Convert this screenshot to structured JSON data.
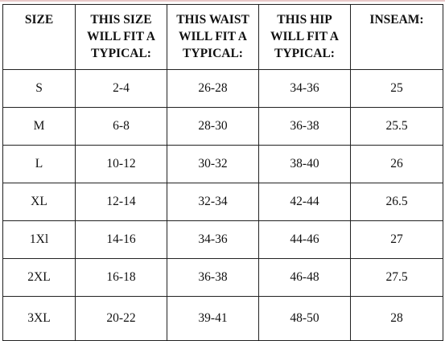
{
  "table": {
    "header": [
      "SIZE",
      "THIS SIZE WILL FIT A TYPICAL:",
      "THIS WAIST WILL FIT A TYPICAL:",
      "THIS HIP WILL FIT A TYPICAL:",
      "INSEAM:"
    ],
    "rows": [
      [
        "S",
        "2-4",
        "26-28",
        "34-36",
        "25"
      ],
      [
        "M",
        "6-8",
        "28-30",
        "36-38",
        "25.5"
      ],
      [
        "L",
        "10-12",
        "30-32",
        "38-40",
        "26"
      ],
      [
        "XL",
        "12-14",
        "32-34",
        "42-44",
        "26.5"
      ],
      [
        "1Xl",
        "14-16",
        "34-36",
        "44-46",
        "27"
      ],
      [
        "2XL",
        "16-18",
        "36-38",
        "46-48",
        "27.5"
      ],
      [
        "3XL",
        "20-22",
        "39-41",
        "48-50",
        "28"
      ]
    ]
  }
}
